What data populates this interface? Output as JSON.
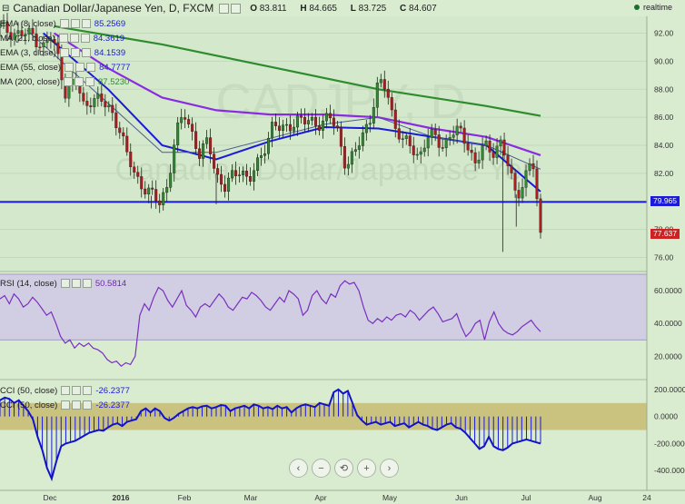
{
  "header": {
    "title": "Canadian Dollar/Japanese Yen, D, FXCM",
    "ohlc": [
      {
        "label": "O",
        "value": "83.811"
      },
      {
        "label": "H",
        "value": "84.665"
      },
      {
        "label": "L",
        "value": "83.725"
      },
      {
        "label": "C",
        "value": "84.607"
      }
    ],
    "realtime": "realtime",
    "realtime_color": "#1e6e2f"
  },
  "watermark": {
    "symbol": "CADJPY, D",
    "name": "Canadian Dollar/Japanese Yen"
  },
  "legend_main": [
    {
      "label": "EMA (8, close)",
      "value": "85.2569",
      "color": "#1a1ad8"
    },
    {
      "label": "MA (21, close)",
      "value": "84.3619",
      "color": "#1a1ad8"
    },
    {
      "label": "EMA (3, close)",
      "value": "84.1539",
      "color": "#1a1ad8"
    },
    {
      "label": "EMA (55, close)",
      "value": "84.7777",
      "color": "#1a1ad8"
    },
    {
      "label": "MA (200, close)",
      "value": "87.5230",
      "color": "#2e8b2e"
    }
  ],
  "legend_rsi": {
    "label": "RSI (14, close)",
    "value": "50.5814"
  },
  "legend_cci": [
    {
      "label": "CCI (50, close)",
      "value": "-26.2377"
    },
    {
      "label": "CCI (50, close)",
      "value": "-26.2377"
    }
  ],
  "price_tags": [
    {
      "value": "79.965",
      "color": "#1a1ad8"
    },
    {
      "value": "77.637",
      "color": "#cc2222"
    }
  ],
  "zoom_controls": [
    "‹",
    "−",
    "⟲",
    "+",
    "›"
  ],
  "chart_data": [
    {
      "type": "candlestick",
      "x_ticks": [
        "Dec",
        "2016",
        "Feb",
        "Mar",
        "Apr",
        "May",
        "Jun",
        "Jul",
        "Aug",
        "24"
      ],
      "y_ticks": [
        76.0,
        78.0,
        80.0,
        82.0,
        84.0,
        86.0,
        88.0,
        90.0,
        92.0
      ],
      "ylim": [
        75.0,
        93.2
      ],
      "horizontal_line": 79.965,
      "last_price": 77.637,
      "close_path": [
        [
          0,
          92.4
        ],
        [
          0.02,
          92.1
        ],
        [
          0.04,
          91.9
        ],
        [
          0.06,
          91.9
        ],
        [
          0.08,
          91.0
        ],
        [
          0.095,
          91.7
        ],
        [
          0.11,
          90.0
        ],
        [
          0.12,
          87.8
        ],
        [
          0.14,
          88.6
        ],
        [
          0.155,
          86.8
        ],
        [
          0.17,
          87.4
        ],
        [
          0.19,
          87.0
        ],
        [
          0.205,
          86.6
        ],
        [
          0.22,
          85.3
        ],
        [
          0.235,
          83.2
        ],
        [
          0.25,
          82.0
        ],
        [
          0.265,
          81.0
        ],
        [
          0.28,
          80.4
        ],
        [
          0.295,
          80.0
        ],
        [
          0.31,
          81.2
        ],
        [
          0.325,
          84.5
        ],
        [
          0.34,
          86.5
        ],
        [
          0.355,
          85.0
        ],
        [
          0.37,
          83.0
        ],
        [
          0.385,
          84.5
        ],
        [
          0.4,
          82.0
        ],
        [
          0.415,
          80.8
        ],
        [
          0.43,
          81.8
        ],
        [
          0.445,
          82.5
        ],
        [
          0.46,
          81.3
        ],
        [
          0.475,
          82.5
        ],
        [
          0.49,
          84.0
        ],
        [
          0.505,
          85.5
        ],
        [
          0.52,
          85.0
        ],
        [
          0.535,
          85.5
        ],
        [
          0.55,
          85.8
        ],
        [
          0.565,
          85.6
        ],
        [
          0.58,
          85.8
        ],
        [
          0.595,
          85.5
        ],
        [
          0.61,
          86.0
        ],
        [
          0.625,
          85.0
        ],
        [
          0.64,
          82.5
        ],
        [
          0.655,
          83.2
        ],
        [
          0.67,
          84.8
        ],
        [
          0.685,
          86.0
        ],
        [
          0.7,
          88.3
        ],
        [
          0.715,
          88.2
        ],
        [
          0.73,
          85.5
        ],
        [
          0.745,
          84.2
        ],
        [
          0.76,
          84.0
        ],
        [
          0.775,
          83.2
        ],
        [
          0.79,
          84.5
        ],
        [
          0.805,
          84.6
        ],
        [
          0.82,
          84.0
        ],
        [
          0.835,
          84.8
        ],
        [
          0.85,
          85.0
        ],
        [
          0.865,
          84.2
        ],
        [
          0.88,
          82.5
        ],
        [
          0.895,
          84.0
        ],
        [
          0.91,
          83.6
        ],
        [
          0.925,
          84.2
        ],
        [
          0.94,
          82.5
        ],
        [
          0.955,
          80.5
        ],
        [
          0.97,
          81.5
        ],
        [
          0.985,
          83.0
        ],
        [
          1.0,
          77.6
        ]
      ],
      "series": [
        {
          "name": "MA (200, close)",
          "color": "#2e8b2e",
          "points": [
            [
              0.1,
              92.5
            ],
            [
              0.3,
              91.2
            ],
            [
              0.5,
              89.6
            ],
            [
              0.7,
              88.0
            ],
            [
              0.9,
              86.8
            ],
            [
              1.0,
              86.1
            ]
          ]
        },
        {
          "name": "EMA (55, close)",
          "color": "#8a2be2",
          "points": [
            [
              0.1,
              92.0
            ],
            [
              0.2,
              89.5
            ],
            [
              0.3,
              87.4
            ],
            [
              0.4,
              86.5
            ],
            [
              0.5,
              86.2
            ],
            [
              0.6,
              86.2
            ],
            [
              0.7,
              86.0
            ],
            [
              0.8,
              85.2
            ],
            [
              0.9,
              84.6
            ],
            [
              1.0,
              83.3
            ]
          ]
        },
        {
          "name": "MA (21, close)",
          "color": "#1a1ad8",
          "points": [
            [
              0.08,
              92.0
            ],
            [
              0.2,
              88.0
            ],
            [
              0.3,
              84.0
            ],
            [
              0.4,
              83.0
            ],
            [
              0.5,
              84.3
            ],
            [
              0.6,
              85.3
            ],
            [
              0.7,
              85.2
            ],
            [
              0.8,
              84.6
            ],
            [
              0.9,
              84.0
            ],
            [
              1.0,
              80.7
            ]
          ]
        },
        {
          "name": "EMA (8, close)",
          "color": "#4a5a90",
          "points": [
            [
              0.05,
              92.2
            ],
            [
              0.2,
              87.0
            ],
            [
              0.3,
              83.5
            ],
            [
              0.4,
              83.5
            ],
            [
              0.5,
              84.5
            ],
            [
              0.6,
              85.5
            ],
            [
              0.7,
              86.0
            ],
            [
              0.8,
              84.6
            ],
            [
              0.9,
              84.0
            ],
            [
              1.0,
              82.3
            ]
          ]
        }
      ]
    },
    {
      "type": "line",
      "name": "RSI (14, close)",
      "y_ticks": [
        "60.0000",
        "40.0000",
        "20.0000"
      ],
      "ylim": [
        8,
        70
      ],
      "band": [
        30,
        70
      ],
      "values": [
        55,
        57,
        52,
        58,
        55,
        50,
        52,
        56,
        53,
        49,
        45,
        47,
        40,
        32,
        28,
        30,
        25,
        28,
        26,
        28,
        25,
        24,
        22,
        18,
        16,
        17,
        14,
        16,
        15,
        20,
        45,
        52,
        48,
        56,
        62,
        60,
        54,
        50,
        55,
        60,
        51,
        48,
        44,
        50,
        52,
        50,
        54,
        58,
        55,
        50,
        48,
        52,
        56,
        55,
        59,
        57,
        54,
        50,
        48,
        52,
        56,
        53,
        60,
        58,
        55,
        45,
        48,
        57,
        60,
        55,
        52,
        58,
        56,
        63,
        66,
        64,
        65,
        60,
        50,
        42,
        40,
        43,
        41,
        44,
        42,
        45,
        46,
        44,
        48,
        46,
        42,
        45,
        48,
        50,
        46,
        41,
        42,
        43,
        46,
        38,
        32,
        35,
        40,
        42,
        30,
        41,
        47,
        40,
        36,
        34,
        33,
        35,
        38,
        40,
        42,
        38,
        35
      ]
    },
    {
      "type": "bar",
      "name": "CCI (50, close)",
      "y_ticks": [
        "200.0000",
        "0.0000",
        "-200.0000",
        "-400.0000"
      ],
      "ylim": [
        -520,
        260
      ],
      "band": [
        -100,
        100
      ],
      "values": [
        120,
        140,
        130,
        100,
        120,
        80,
        40,
        -20,
        -150,
        -250,
        -380,
        -460,
        -330,
        -220,
        -200,
        -190,
        -180,
        -160,
        -140,
        -120,
        -110,
        -100,
        -105,
        -80,
        -60,
        -50,
        -70,
        -40,
        -30,
        -20,
        40,
        60,
        30,
        60,
        40,
        -10,
        -30,
        -10,
        20,
        40,
        60,
        70,
        60,
        75,
        80,
        60,
        70,
        85,
        80,
        40,
        60,
        70,
        80,
        60,
        90,
        80,
        60,
        70,
        55,
        80,
        60,
        70,
        30,
        60,
        80,
        90,
        80,
        70,
        100,
        90,
        80,
        180,
        200,
        170,
        190,
        100,
        10,
        -30,
        -60,
        -50,
        -40,
        -60,
        -50,
        -40,
        -70,
        -60,
        -50,
        -80,
        -60,
        -40,
        -60,
        -70,
        -90,
        -100,
        -80,
        -60,
        -50,
        -80,
        -90,
        -120,
        -160,
        -200,
        -240,
        -220,
        -150,
        -220,
        -240,
        -250,
        -230,
        -200,
        -190,
        -180,
        -170,
        -180,
        -190,
        -200
      ]
    }
  ]
}
